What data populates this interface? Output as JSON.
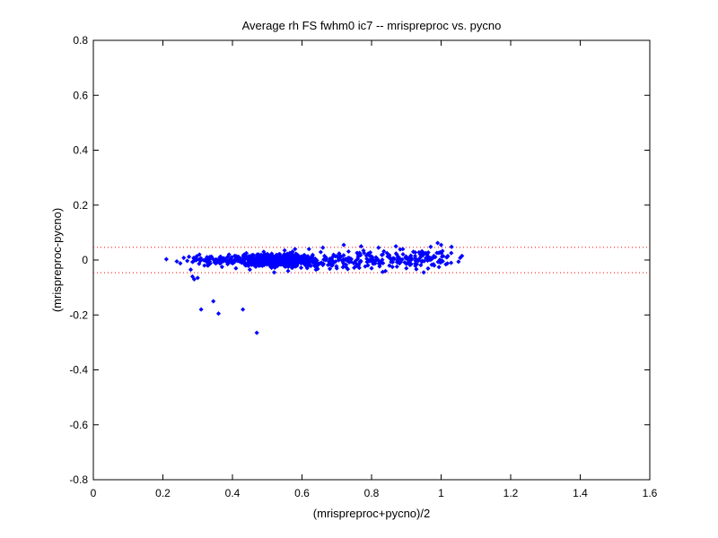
{
  "chart_data": {
    "type": "scatter",
    "title": "Average rh FS fwhm0 ic7 -- mrispreproc vs. pycno",
    "xlabel": "(mrispreproc+pycno)/2",
    "ylabel": "(mrispreproc-pycno)",
    "xlim": [
      0,
      1.6
    ],
    "ylim": [
      -0.8,
      0.8
    ],
    "xticks": [
      "0",
      "0.2",
      "0.4",
      "0.6",
      "0.8",
      "1",
      "1.2",
      "1.4",
      "1.6"
    ],
    "yticks": [
      "-0.8",
      "-0.6",
      "-0.4",
      "-0.2",
      "0",
      "0.2",
      "0.4",
      "0.6",
      "0.8"
    ],
    "grid": false,
    "marker_color": "#0000ff",
    "reference_line_color": "#ff0000",
    "reference_lines": [
      0.046,
      -0.046
    ],
    "series": [
      {
        "points": [
          [
            0.21,
            0.003
          ],
          [
            0.24,
            -0.005
          ],
          [
            0.25,
            -0.012
          ],
          [
            0.26,
            0.008
          ],
          [
            0.27,
            -0.003
          ],
          [
            0.275,
            0.012
          ],
          [
            0.28,
            -0.035
          ],
          [
            0.285,
            -0.06
          ],
          [
            0.29,
            -0.07
          ],
          [
            0.3,
            -0.065
          ],
          [
            0.305,
            0.02
          ],
          [
            0.31,
            -0.18
          ],
          [
            0.345,
            -0.15
          ],
          [
            0.36,
            -0.195
          ],
          [
            0.43,
            -0.18
          ],
          [
            0.47,
            -0.265
          ],
          [
            0.52,
            -0.045
          ],
          [
            0.56,
            -0.04
          ],
          [
            0.64,
            -0.035
          ],
          [
            0.68,
            -0.032
          ],
          [
            0.7,
            -0.03
          ],
          [
            0.75,
            -0.028
          ],
          [
            0.8,
            -0.03
          ],
          [
            0.84,
            -0.04
          ],
          [
            0.86,
            -0.025
          ],
          [
            0.87,
            0.05
          ],
          [
            0.9,
            -0.03
          ],
          [
            0.92,
            0.03
          ],
          [
            0.95,
            -0.045
          ],
          [
            0.97,
            0.048
          ],
          [
            0.99,
            0.062
          ],
          [
            1.0,
            0.055
          ],
          [
            1.03,
            0.048
          ],
          [
            1.05,
            -0.006
          ],
          [
            1.055,
            0.008
          ],
          [
            1.06,
            0.015
          ],
          [
            0.98,
            -0.02
          ],
          [
            0.93,
            -0.015
          ],
          [
            0.96,
            0.02
          ],
          [
            0.89,
            0.04
          ],
          [
            0.82,
            0.045
          ],
          [
            0.77,
            0.05
          ],
          [
            0.72,
            0.055
          ],
          [
            0.66,
            0.045
          ],
          [
            0.62,
            0.04
          ],
          [
            0.58,
            0.04
          ],
          [
            0.55,
            0.035
          ],
          [
            0.49,
            0.03
          ],
          [
            0.44,
            0.025
          ],
          [
            0.39,
            0.02
          ],
          [
            0.34,
            0.012
          ],
          [
            0.33,
            -0.02
          ],
          [
            0.37,
            -0.025
          ],
          [
            0.41,
            -0.03
          ],
          [
            0.45,
            -0.035
          ]
        ]
      }
    ]
  }
}
